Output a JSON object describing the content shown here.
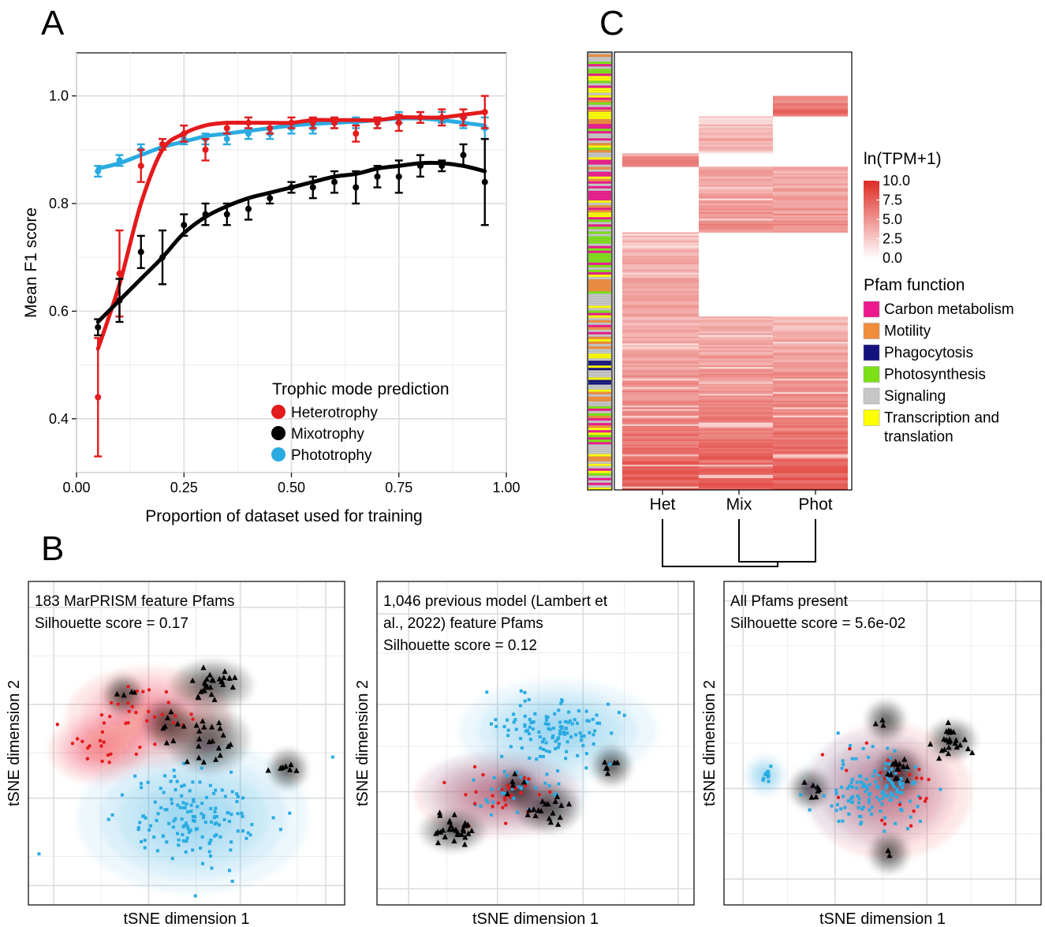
{
  "panels": {
    "A": "A",
    "B": "B",
    "C": "C"
  },
  "colors": {
    "heterotrophy": "#e41a1c",
    "mixotrophy": "#000000",
    "phototrophy": "#29abe2",
    "heat_low": "#ffffff",
    "heat_high": "#de2d26"
  },
  "chart_data": [
    {
      "panel": "A",
      "type": "line",
      "title": "",
      "xlabel": "Proportion of dataset used for training",
      "ylabel": "Mean F1 score",
      "xlim": [
        0,
        1
      ],
      "ylim": [
        0.3,
        1.08
      ],
      "x_ticks": [
        0,
        0.25,
        0.5,
        0.75,
        1
      ],
      "x_tick_labels": [
        "0.00",
        "0.25",
        "0.50",
        "0.75",
        "1.00"
      ],
      "y_ticks": [
        0.4,
        0.6,
        0.8,
        1.0
      ],
      "y_tick_labels": [
        "0.4",
        "0.6",
        "0.8",
        "1.0"
      ],
      "legend_title": "Trophic mode prediction",
      "legend_position": "bottom-right",
      "x": [
        0.05,
        0.1,
        0.15,
        0.2,
        0.25,
        0.3,
        0.35,
        0.4,
        0.45,
        0.5,
        0.55,
        0.6,
        0.65,
        0.7,
        0.75,
        0.8,
        0.85,
        0.9,
        0.95
      ],
      "series": [
        {
          "name": "Heterotrophy",
          "color_key": "heterotrophy",
          "values": [
            0.44,
            0.67,
            0.87,
            0.91,
            0.93,
            0.9,
            0.94,
            0.95,
            0.94,
            0.95,
            0.95,
            0.95,
            0.93,
            0.95,
            0.95,
            0.96,
            0.96,
            0.96,
            0.97
          ],
          "errors": [
            0.11,
            0.08,
            0.03,
            0.01,
            0.015,
            0.02,
            0.01,
            0.01,
            0.01,
            0.01,
            0.01,
            0.01,
            0.015,
            0.01,
            0.015,
            0.01,
            0.015,
            0.015,
            0.03
          ],
          "smooth": [
            0.53,
            0.65,
            0.8,
            0.9,
            0.93,
            0.945,
            0.95,
            0.95,
            0.95,
            0.95,
            0.955,
            0.955,
            0.955,
            0.955,
            0.96,
            0.96,
            0.96,
            0.965,
            0.97
          ]
        },
        {
          "name": "Mixotrophy",
          "color_key": "mixotrophy",
          "values": [
            0.57,
            0.62,
            0.71,
            0.7,
            0.76,
            0.78,
            0.78,
            0.79,
            0.81,
            0.83,
            0.83,
            0.84,
            0.83,
            0.85,
            0.85,
            0.87,
            0.87,
            0.89,
            0.84
          ],
          "errors": [
            0.015,
            0.04,
            0.03,
            0.05,
            0.02,
            0.02,
            0.02,
            0.02,
            0.01,
            0.01,
            0.02,
            0.02,
            0.03,
            0.02,
            0.03,
            0.02,
            0.01,
            0.02,
            0.08
          ],
          "smooth": [
            0.58,
            0.62,
            0.66,
            0.7,
            0.745,
            0.775,
            0.795,
            0.81,
            0.82,
            0.83,
            0.84,
            0.85,
            0.855,
            0.865,
            0.87,
            0.875,
            0.875,
            0.87,
            0.86
          ]
        },
        {
          "name": "Phototrophy",
          "color_key": "phototrophy",
          "values": [
            0.86,
            0.88,
            0.9,
            0.91,
            0.92,
            0.92,
            0.92,
            0.93,
            0.93,
            0.94,
            0.94,
            0.95,
            0.95,
            0.95,
            0.96,
            0.96,
            0.96,
            0.95,
            0.94
          ],
          "errors": [
            0.01,
            0.01,
            0.01,
            0.01,
            0.01,
            0.01,
            0.01,
            0.01,
            0.01,
            0.01,
            0.01,
            0.01,
            0.01,
            0.01,
            0.01,
            0.01,
            0.01,
            0.01,
            0.02
          ],
          "smooth": [
            0.865,
            0.875,
            0.89,
            0.905,
            0.915,
            0.925,
            0.93,
            0.935,
            0.94,
            0.945,
            0.948,
            0.95,
            0.952,
            0.955,
            0.958,
            0.958,
            0.955,
            0.95,
            0.945
          ]
        }
      ]
    },
    {
      "panel": "B",
      "type": "scatter",
      "sub_index": 0,
      "xlabel": "tSNE dimension 1",
      "ylabel": "tSNE dimension 2",
      "annotation": [
        "183 MarPRISM feature Pfams",
        "Silhouette score = 0.17"
      ],
      "silhouette_score": 0.17,
      "clusters": [
        {
          "name": "Phototrophy",
          "color_key": "phototrophy",
          "center": [
            0.52,
            0.73
          ],
          "spread": [
            0.14,
            0.09
          ],
          "count": 150
        },
        {
          "name": "Heterotrophy",
          "color_key": "heterotrophy",
          "center": [
            0.38,
            0.42
          ],
          "spread": [
            0.1,
            0.06
          ],
          "count": 30
        },
        {
          "name": "Heterotrophy",
          "color_key": "heterotrophy",
          "center": [
            0.22,
            0.52
          ],
          "spread": [
            0.06,
            0.04
          ],
          "count": 14
        },
        {
          "name": "Mixotrophy",
          "color_key": "mixotrophy",
          "center": [
            0.58,
            0.32
          ],
          "spread": [
            0.05,
            0.03
          ],
          "count": 28
        },
        {
          "name": "Mixotrophy",
          "color_key": "mixotrophy",
          "center": [
            0.57,
            0.49
          ],
          "spread": [
            0.05,
            0.04
          ],
          "count": 20
        },
        {
          "name": "Mixotrophy",
          "color_key": "mixotrophy",
          "center": [
            0.44,
            0.44
          ],
          "spread": [
            0.03,
            0.03
          ],
          "count": 8
        },
        {
          "name": "Mixotrophy",
          "color_key": "mixotrophy",
          "center": [
            0.82,
            0.58
          ],
          "spread": [
            0.02,
            0.012
          ],
          "count": 8
        },
        {
          "name": "Mixotrophy",
          "color_key": "mixotrophy",
          "center": [
            0.3,
            0.35
          ],
          "spread": [
            0.02,
            0.02
          ],
          "count": 4
        }
      ]
    },
    {
      "panel": "B",
      "type": "scatter",
      "sub_index": 1,
      "xlabel": "tSNE dimension 1",
      "ylabel": "tSNE dimension 2",
      "annotation": [
        "1,046 previous model (Lambert et",
        "al., 2022) feature Pfams",
        "Silhouette score = 0.12"
      ],
      "silhouette_score": 0.12,
      "clusters": [
        {
          "name": "Phototrophy",
          "color_key": "phototrophy",
          "center": [
            0.57,
            0.46
          ],
          "spread": [
            0.12,
            0.06
          ],
          "count": 120
        },
        {
          "name": "Phototrophy",
          "color_key": "phototrophy",
          "center": [
            0.4,
            0.65
          ],
          "spread": [
            0.1,
            0.05
          ],
          "count": 30
        },
        {
          "name": "Heterotrophy",
          "color_key": "heterotrophy",
          "center": [
            0.38,
            0.66
          ],
          "spread": [
            0.1,
            0.05
          ],
          "count": 30
        },
        {
          "name": "Mixotrophy",
          "color_key": "mixotrophy",
          "center": [
            0.24,
            0.77
          ],
          "spread": [
            0.04,
            0.025
          ],
          "count": 30
        },
        {
          "name": "Mixotrophy",
          "color_key": "mixotrophy",
          "center": [
            0.54,
            0.7
          ],
          "spread": [
            0.04,
            0.03
          ],
          "count": 18
        },
        {
          "name": "Mixotrophy",
          "color_key": "mixotrophy",
          "center": [
            0.74,
            0.57
          ],
          "spread": [
            0.02,
            0.015
          ],
          "count": 6
        },
        {
          "name": "Mixotrophy",
          "color_key": "mixotrophy",
          "center": [
            0.44,
            0.64
          ],
          "spread": [
            0.02,
            0.02
          ],
          "count": 5
        }
      ]
    },
    {
      "panel": "B",
      "type": "scatter",
      "sub_index": 2,
      "xlabel": "tSNE dimension 1",
      "ylabel": "tSNE dimension 2",
      "annotation": [
        "All Pfams present",
        "Silhouette score = 5.6e-02"
      ],
      "silhouette_score": 0.056,
      "clusters": [
        {
          "name": "Phototrophy",
          "color_key": "phototrophy",
          "center": [
            0.48,
            0.64
          ],
          "spread": [
            0.09,
            0.07
          ],
          "count": 140
        },
        {
          "name": "Phototrophy",
          "color_key": "phototrophy",
          "center": [
            0.13,
            0.6
          ],
          "spread": [
            0.012,
            0.012
          ],
          "count": 12
        },
        {
          "name": "Heterotrophy",
          "color_key": "heterotrophy",
          "center": [
            0.52,
            0.65
          ],
          "spread": [
            0.1,
            0.08
          ],
          "count": 22
        },
        {
          "name": "Mixotrophy",
          "color_key": "mixotrophy",
          "center": [
            0.72,
            0.49
          ],
          "spread": [
            0.03,
            0.025
          ],
          "count": 24
        },
        {
          "name": "Mixotrophy",
          "color_key": "mixotrophy",
          "center": [
            0.55,
            0.59
          ],
          "spread": [
            0.03,
            0.03
          ],
          "count": 14
        },
        {
          "name": "Mixotrophy",
          "color_key": "mixotrophy",
          "center": [
            0.27,
            0.64
          ],
          "spread": [
            0.02,
            0.015
          ],
          "count": 7
        },
        {
          "name": "Mixotrophy",
          "color_key": "mixotrophy",
          "center": [
            0.51,
            0.43
          ],
          "spread": [
            0.015,
            0.012
          ],
          "count": 3
        },
        {
          "name": "Mixotrophy",
          "color_key": "mixotrophy",
          "center": [
            0.52,
            0.84
          ],
          "spread": [
            0.01,
            0.01
          ],
          "count": 2
        }
      ]
    },
    {
      "panel": "C",
      "type": "heatmap",
      "columns": [
        "Het",
        "Mix",
        "Phot"
      ],
      "dendrogram": "((Mix,Phot),Het)",
      "legend_title": "ln(TPM+1)",
      "scale_range": [
        0,
        10
      ],
      "scale_ticks": [
        "10.0",
        "7.5",
        "5.0",
        "2.5",
        "0.0"
      ],
      "row_annotation_title": "Pfam function",
      "categories": [
        {
          "name": "Carbon metabolism",
          "color": "#ec1a8c"
        },
        {
          "name": "Motility",
          "color": "#f08c3a"
        },
        {
          "name": "Phagocytosis",
          "color": "#14137e"
        },
        {
          "name": "Photosynthesis",
          "color": "#7be016"
        },
        {
          "name": "Signaling",
          "color": "#c6c6c6"
        },
        {
          "name": "Transcription and translation",
          "color": "#ffff00",
          "lines": [
            "Transcription and",
            "translation"
          ]
        }
      ],
      "blocks": [
        {
          "rows": "top",
          "high_in": [
            "Phot"
          ],
          "level": 6
        },
        {
          "rows": "upper",
          "high_in": [
            "Mix"
          ],
          "level": 3.5
        },
        {
          "rows": "narrow",
          "high_in": [
            "Het"
          ],
          "level": 4
        },
        {
          "rows": "mid",
          "high_in": [
            "Mix",
            "Phot"
          ],
          "level": 4.5
        },
        {
          "rows": "lower",
          "high_in": [
            "Het"
          ],
          "level": 3.5
        },
        {
          "rows": "bottom",
          "high_in": [
            "Het",
            "Mix",
            "Phot"
          ],
          "level": 5
        }
      ]
    }
  ]
}
